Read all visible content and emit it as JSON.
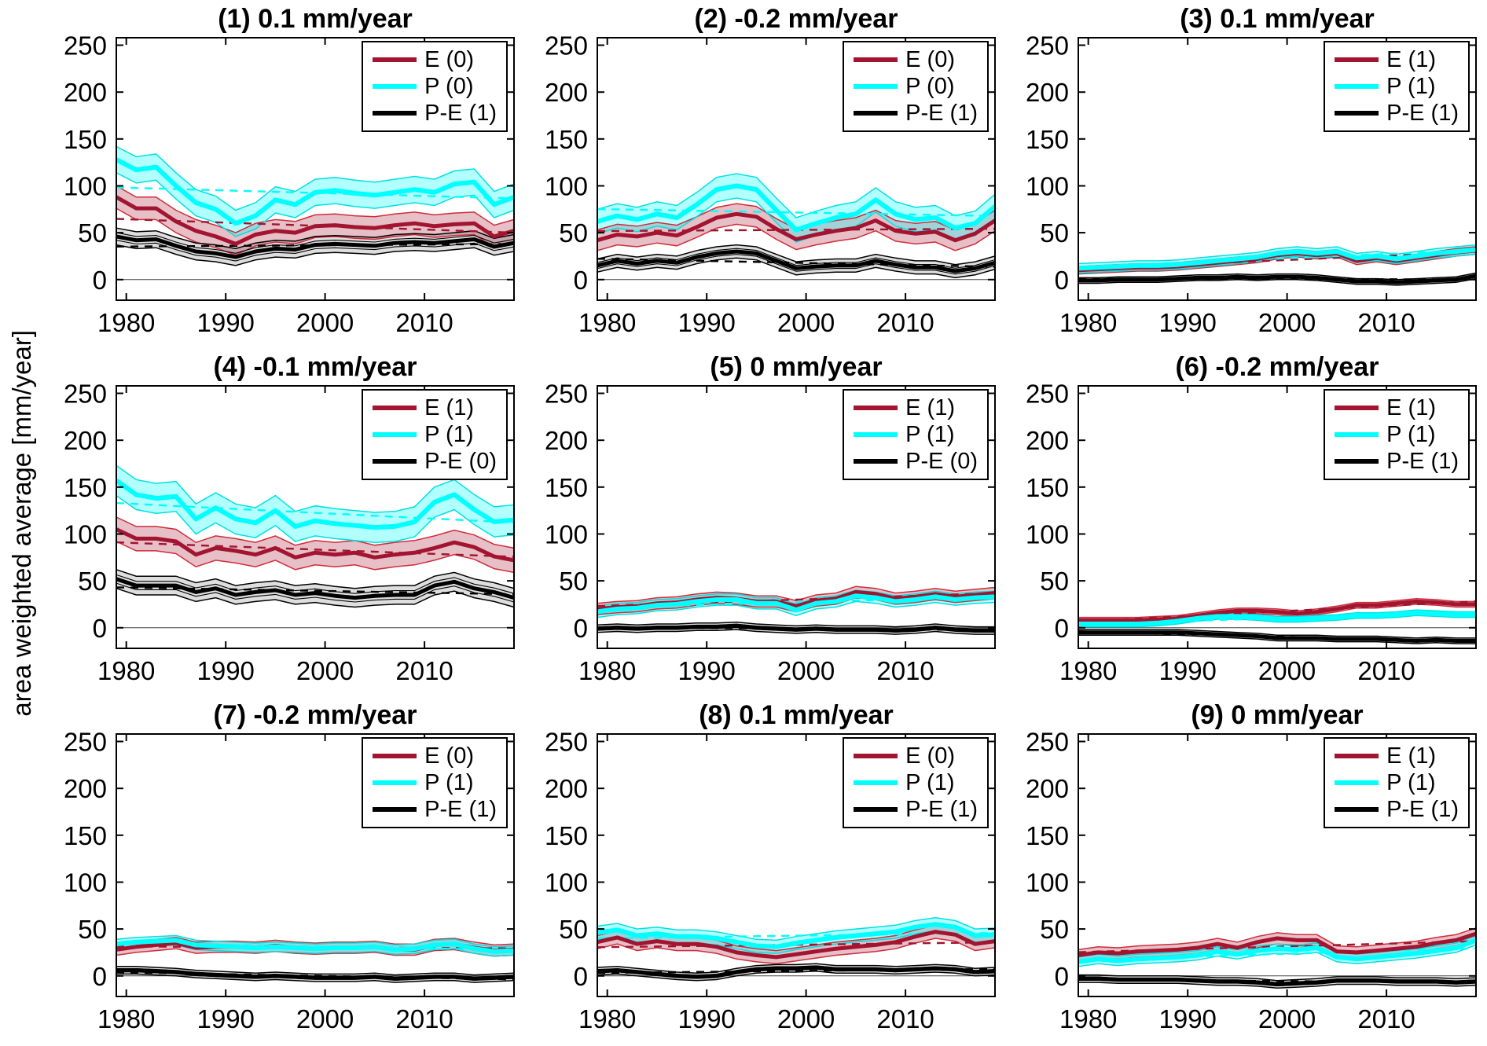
{
  "figure": {
    "ylabel": "area weighted average [mm/year]",
    "x_ticks": [
      1980,
      1990,
      2000,
      2010
    ],
    "y_ticks": [
      0,
      50,
      100,
      150,
      200,
      250
    ],
    "xlim": [
      1979,
      2019
    ],
    "ylim_draw": [
      -22,
      258
    ],
    "colors": {
      "E": {
        "line": "#a2142f",
        "edge": "#d02c3a",
        "fill": "#a2142f",
        "fill_opacity": 0.27,
        "mean_width": 5
      },
      "P": {
        "line": "#00ffff",
        "edge": "#00e0e0",
        "fill": "#00ffff",
        "fill_opacity": 0.3,
        "mean_width": 6
      },
      "P-E": {
        "line": "#000000",
        "edge": "#000000",
        "fill": "#000000",
        "fill_opacity": 0.13,
        "mean_width": 5
      }
    }
  },
  "chart_data": [
    {
      "type": "line",
      "title": "(1) 0.1 mm/year",
      "legend": [
        "E (0)",
        "P (0)",
        "P-E (1)"
      ],
      "ylim": [
        0,
        250
      ],
      "xlabel": "",
      "ylabel": "area weighted average [mm/year]",
      "grid": false,
      "legend_position": "top-right",
      "x": [
        1979,
        1981,
        1983,
        1985,
        1987,
        1989,
        1991,
        1993,
        1995,
        1997,
        1999,
        2001,
        2003,
        2005,
        2007,
        2009,
        2011,
        2013,
        2015,
        2017,
        2019
      ],
      "series": [
        {
          "name": "E",
          "values": [
            88,
            76,
            76,
            62,
            52,
            46,
            38,
            48,
            52,
            50,
            57,
            58,
            56,
            55,
            58,
            60,
            57,
            59,
            60,
            46,
            52
          ],
          "band": 12
        },
        {
          "name": "P",
          "values": [
            128,
            117,
            120,
            100,
            82,
            75,
            60,
            68,
            85,
            80,
            93,
            95,
            92,
            90,
            93,
            96,
            93,
            102,
            104,
            80,
            88
          ],
          "band": 14
        },
        {
          "name": "P-E",
          "values": [
            46,
            42,
            43,
            36,
            30,
            28,
            24,
            30,
            33,
            32,
            37,
            38,
            37,
            36,
            39,
            40,
            39,
            41,
            43,
            35,
            39
          ],
          "band": 9
        }
      ]
    },
    {
      "type": "line",
      "title": "(2) -0.2 mm/year",
      "legend": [
        "E (0)",
        "P (0)",
        "P-E (1)"
      ],
      "ylim": [
        0,
        250
      ],
      "xlabel": "",
      "ylabel": "area weighted average [mm/year]",
      "grid": false,
      "legend_position": "top-right",
      "x": [
        1979,
        1981,
        1983,
        1985,
        1987,
        1989,
        1991,
        1993,
        1995,
        1997,
        1999,
        2001,
        2003,
        2005,
        2007,
        2009,
        2011,
        2013,
        2015,
        2017,
        2019
      ],
      "series": [
        {
          "name": "E",
          "values": [
            42,
            48,
            46,
            50,
            47,
            56,
            66,
            70,
            67,
            54,
            43,
            48,
            52,
            55,
            63,
            52,
            49,
            51,
            42,
            49,
            63
          ],
          "band": 11
        },
        {
          "name": "P",
          "values": [
            62,
            68,
            64,
            70,
            66,
            80,
            96,
            100,
            96,
            74,
            53,
            60,
            66,
            70,
            85,
            70,
            64,
            66,
            55,
            60,
            78
          ],
          "band": 13
        },
        {
          "name": "P-E",
          "values": [
            15,
            20,
            17,
            20,
            18,
            24,
            28,
            30,
            28,
            20,
            12,
            14,
            15,
            15,
            20,
            16,
            13,
            13,
            9,
            12,
            18
          ],
          "band": 7
        }
      ]
    },
    {
      "type": "line",
      "title": "(3) 0.1 mm/year",
      "legend": [
        "E (1)",
        "P (1)",
        "P-E (1)"
      ],
      "ylim": [
        0,
        250
      ],
      "xlabel": "",
      "ylabel": "area weighted average [mm/year]",
      "grid": false,
      "legend_position": "top-right",
      "x": [
        1979,
        1981,
        1983,
        1985,
        1987,
        1989,
        1991,
        1993,
        1995,
        1997,
        1999,
        2001,
        2003,
        2005,
        2007,
        2009,
        2011,
        2013,
        2015,
        2017,
        2019
      ],
      "series": [
        {
          "name": "E",
          "values": [
            10,
            11,
            12,
            13,
            13,
            14,
            16,
            18,
            20,
            22,
            26,
            28,
            26,
            28,
            20,
            23,
            20,
            23,
            26,
            29,
            31
          ],
          "band": 4
        },
        {
          "name": "P",
          "values": [
            12,
            13,
            14,
            15,
            15,
            16,
            18,
            20,
            22,
            24,
            28,
            30,
            28,
            30,
            23,
            25,
            22,
            25,
            28,
            30,
            32
          ],
          "band": 5
        },
        {
          "name": "P-E",
          "values": [
            -1,
            -1,
            0,
            0,
            0,
            1,
            2,
            2,
            3,
            2,
            3,
            3,
            2,
            0,
            -2,
            -2,
            -3,
            -2,
            -1,
            0,
            4
          ],
          "band": 3
        }
      ]
    },
    {
      "type": "line",
      "title": "(4) -0.1 mm/year",
      "legend": [
        "E (1)",
        "P (1)",
        "P-E (0)"
      ],
      "ylim": [
        0,
        250
      ],
      "xlabel": "",
      "ylabel": "area weighted average [mm/year]",
      "grid": false,
      "legend_position": "top-right",
      "x": [
        1979,
        1981,
        1983,
        1985,
        1987,
        1989,
        1991,
        1993,
        1995,
        1997,
        1999,
        2001,
        2003,
        2005,
        2007,
        2009,
        2011,
        2013,
        2015,
        2017,
        2019
      ],
      "series": [
        {
          "name": "E",
          "values": [
            105,
            95,
            95,
            92,
            78,
            85,
            82,
            78,
            85,
            75,
            80,
            78,
            80,
            75,
            78,
            80,
            85,
            91,
            86,
            76,
            72
          ],
          "band": 13
        },
        {
          "name": "P",
          "values": [
            157,
            142,
            138,
            140,
            116,
            128,
            116,
            112,
            125,
            108,
            114,
            111,
            109,
            107,
            108,
            113,
            134,
            142,
            126,
            113,
            115
          ],
          "band": 16
        },
        {
          "name": "P-E",
          "values": [
            52,
            45,
            45,
            45,
            38,
            42,
            35,
            38,
            40,
            35,
            37,
            34,
            32,
            34,
            35,
            35,
            45,
            49,
            42,
            38,
            32
          ],
          "band": 10
        }
      ]
    },
    {
      "type": "line",
      "title": "(5) 0 mm/year",
      "legend": [
        "E (1)",
        "P (1)",
        "P-E (0)"
      ],
      "ylim": [
        0,
        250
      ],
      "xlabel": "",
      "ylabel": "area weighted average [mm/year]",
      "grid": false,
      "legend_position": "top-right",
      "x": [
        1979,
        1981,
        1983,
        1985,
        1987,
        1989,
        1991,
        1993,
        1995,
        1997,
        1999,
        2001,
        2003,
        2005,
        2007,
        2009,
        2011,
        2013,
        2015,
        2017,
        2019
      ],
      "series": [
        {
          "name": "E",
          "values": [
            20,
            22,
            23,
            26,
            27,
            30,
            32,
            31,
            28,
            28,
            23,
            29,
            31,
            38,
            36,
            31,
            33,
            36,
            33,
            35,
            37
          ],
          "band": 6
        },
        {
          "name": "P",
          "values": [
            17,
            20,
            21,
            24,
            25,
            28,
            30,
            30,
            26,
            26,
            19,
            26,
            28,
            34,
            32,
            28,
            30,
            33,
            30,
            32,
            33
          ],
          "band": 6
        },
        {
          "name": "P-E",
          "values": [
            -1,
            0,
            -1,
            0,
            0,
            1,
            1,
            2,
            0,
            -1,
            -2,
            -1,
            -2,
            -2,
            -2,
            -3,
            -2,
            0,
            -2,
            -3,
            -3
          ],
          "band": 4
        }
      ]
    },
    {
      "type": "line",
      "title": "(6) -0.2 mm/year",
      "legend": [
        "E (1)",
        "P (1)",
        "P-E (1)"
      ],
      "ylim": [
        0,
        250
      ],
      "xlabel": "",
      "ylabel": "area weighted average [mm/year]",
      "grid": false,
      "legend_position": "top-right",
      "x": [
        1979,
        1981,
        1983,
        1985,
        1987,
        1989,
        1991,
        1993,
        1995,
        1997,
        1999,
        2001,
        2003,
        2005,
        2007,
        2009,
        2011,
        2013,
        2015,
        2017,
        2019
      ],
      "series": [
        {
          "name": "E",
          "values": [
            8,
            8,
            8,
            8,
            9,
            10,
            13,
            16,
            18,
            18,
            17,
            15,
            17,
            20,
            24,
            24,
            26,
            28,
            27,
            25,
            25
          ],
          "band": 3
        },
        {
          "name": "P",
          "values": [
            4,
            4,
            4,
            4,
            5,
            7,
            10,
            12,
            12,
            11,
            9,
            9,
            10,
            11,
            13,
            13,
            14,
            16,
            15,
            14,
            14
          ],
          "band": 3
        },
        {
          "name": "P-E",
          "values": [
            -5,
            -5,
            -5,
            -5,
            -5,
            -5,
            -6,
            -7,
            -8,
            -9,
            -11,
            -11,
            -11,
            -12,
            -12,
            -12,
            -13,
            -14,
            -13,
            -14,
            -14
          ],
          "band": 3
        }
      ]
    },
    {
      "type": "line",
      "title": "(7) -0.2 mm/year",
      "legend": [
        "E (0)",
        "P (1)",
        "P-E (1)"
      ],
      "ylim": [
        0,
        250
      ],
      "xlabel": "",
      "ylabel": "area weighted average [mm/year]",
      "grid": false,
      "legend_position": "top-right",
      "x": [
        1979,
        1981,
        1983,
        1985,
        1987,
        1989,
        1991,
        1993,
        1995,
        1997,
        1999,
        2001,
        2003,
        2005,
        2007,
        2009,
        2011,
        2013,
        2015,
        2017,
        2019
      ],
      "series": [
        {
          "name": "E",
          "values": [
            28,
            31,
            33,
            35,
            30,
            31,
            31,
            30,
            32,
            30,
            29,
            30,
            30,
            31,
            28,
            28,
            33,
            34,
            30,
            27,
            28
          ],
          "band": 6
        },
        {
          "name": "P",
          "values": [
            34,
            36,
            37,
            38,
            33,
            32,
            31,
            30,
            31,
            30,
            29,
            30,
            30,
            31,
            28,
            29,
            33,
            34,
            29,
            26,
            27
          ],
          "band": 5
        },
        {
          "name": "P-E",
          "values": [
            6,
            6,
            5,
            4,
            2,
            1,
            0,
            -1,
            0,
            -1,
            -2,
            -2,
            -2,
            -1,
            -3,
            -2,
            -1,
            -1,
            -3,
            -2,
            -1
          ],
          "band": 4
        }
      ]
    },
    {
      "type": "line",
      "title": "(8) 0.1 mm/year",
      "legend": [
        "E (0)",
        "P (1)",
        "P-E (1)"
      ],
      "ylim": [
        0,
        250
      ],
      "xlabel": "",
      "ylabel": "area weighted average [mm/year]",
      "grid": false,
      "legend_position": "top-right",
      "x": [
        1979,
        1981,
        1983,
        1985,
        1987,
        1989,
        1991,
        1993,
        1995,
        1997,
        1999,
        2001,
        2003,
        2005,
        2007,
        2009,
        2011,
        2013,
        2015,
        2017,
        2019
      ],
      "series": [
        {
          "name": "E",
          "values": [
            36,
            41,
            34,
            37,
            34,
            34,
            31,
            25,
            22,
            20,
            23,
            26,
            29,
            31,
            33,
            36,
            42,
            47,
            44,
            34,
            37
          ],
          "band": 7
        },
        {
          "name": "P",
          "values": [
            46,
            49,
            43,
            45,
            42,
            42,
            40,
            36,
            32,
            31,
            35,
            38,
            41,
            43,
            45,
            47,
            52,
            55,
            52,
            43,
            44
          ],
          "band": 7
        },
        {
          "name": "P-E",
          "values": [
            5,
            6,
            4,
            2,
            0,
            -1,
            0,
            4,
            7,
            8,
            8,
            9,
            7,
            7,
            7,
            6,
            7,
            8,
            7,
            4,
            5
          ],
          "band": 4
        }
      ]
    },
    {
      "type": "line",
      "title": "(9) 0 mm/year",
      "legend": [
        "E (1)",
        "P (1)",
        "P-E (1)"
      ],
      "ylim": [
        0,
        250
      ],
      "xlabel": "",
      "ylabel": "area weighted average [mm/year]",
      "grid": false,
      "legend_position": "top-right",
      "x": [
        1979,
        1981,
        1983,
        1985,
        1987,
        1989,
        1991,
        1993,
        1995,
        1997,
        1999,
        2001,
        2003,
        2005,
        2007,
        2009,
        2011,
        2013,
        2015,
        2017,
        2019
      ],
      "series": [
        {
          "name": "E",
          "values": [
            22,
            25,
            24,
            26,
            27,
            28,
            30,
            34,
            30,
            36,
            40,
            38,
            38,
            26,
            25,
            27,
            29,
            31,
            35,
            38,
            45
          ],
          "band": 6
        },
        {
          "name": "P",
          "values": [
            15,
            18,
            16,
            18,
            19,
            20,
            22,
            26,
            23,
            27,
            29,
            28,
            30,
            20,
            18,
            20,
            22,
            24,
            27,
            30,
            38
          ],
          "band": 5
        },
        {
          "name": "P-E",
          "values": [
            -3,
            -3,
            -4,
            -4,
            -4,
            -4,
            -5,
            -6,
            -6,
            -7,
            -9,
            -8,
            -7,
            -5,
            -5,
            -5,
            -6,
            -6,
            -6,
            -7,
            -6
          ],
          "band": 4
        }
      ]
    }
  ]
}
